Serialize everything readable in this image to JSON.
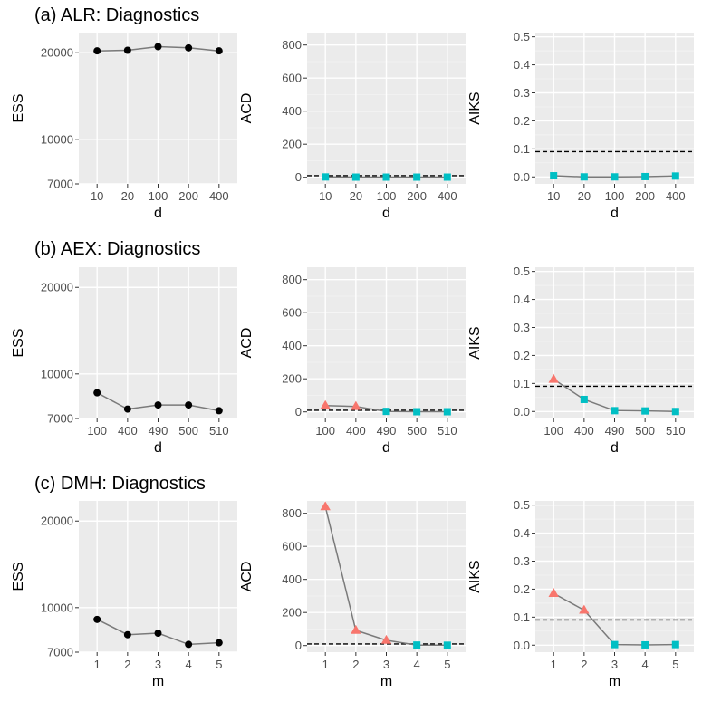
{
  "colors": {
    "ess": "#000000",
    "fail": "#f8766d",
    "pass": "#00bfc4"
  },
  "rows": [
    {
      "title": "(a) ALR: Diagnostics"
    },
    {
      "title": "(b) AEX: Diagnostics"
    },
    {
      "title": "(c) DMH: Diagnostics"
    }
  ],
  "chart_data": [
    {
      "id": "a-ess",
      "type": "line",
      "xlabel": "d",
      "ylabel": "ESS",
      "categories": [
        "10",
        "20",
        "100",
        "200",
        "400"
      ],
      "values": [
        20300,
        20400,
        21000,
        20800,
        20300
      ],
      "yscale": "log",
      "ylim": [
        7000,
        23500
      ],
      "yticks": [
        7000,
        10000,
        20000
      ],
      "ytick_labels": [
        "7000",
        "10000",
        "20000"
      ],
      "marker": "circle"
    },
    {
      "id": "a-acd",
      "type": "line",
      "xlabel": "d",
      "ylabel": "ACD",
      "categories": [
        "10",
        "20",
        "100",
        "200",
        "400"
      ],
      "values": [
        2,
        1,
        1,
        1,
        1
      ],
      "status": [
        "pass",
        "pass",
        "pass",
        "pass",
        "pass"
      ],
      "ylim": [
        -40,
        875
      ],
      "yticks": [
        0,
        200,
        400,
        600,
        800
      ],
      "ytick_labels": [
        "0",
        "200",
        "400",
        "600",
        "800"
      ],
      "ref_line": 9.49
    },
    {
      "id": "a-aiks",
      "type": "line",
      "xlabel": "d",
      "ylabel": "AIKS",
      "categories": [
        "10",
        "20",
        "100",
        "200",
        "400"
      ],
      "values": [
        0.004,
        0.0,
        0.0,
        0.001,
        0.003
      ],
      "status": [
        "pass",
        "pass",
        "pass",
        "pass",
        "pass"
      ],
      "ylim": [
        -0.025,
        0.515
      ],
      "yticks": [
        0,
        0.1,
        0.2,
        0.3,
        0.4,
        0.5
      ],
      "ytick_labels": [
        "0.0",
        "0.1",
        "0.2",
        "0.3",
        "0.4",
        "0.5"
      ],
      "ref_line": 0.09
    },
    {
      "id": "b-ess",
      "type": "line",
      "xlabel": "d",
      "ylabel": "ESS",
      "categories": [
        "100",
        "400",
        "490",
        "500",
        "510"
      ],
      "values": [
        8600,
        7550,
        7800,
        7800,
        7450
      ],
      "yscale": "log",
      "ylim": [
        7000,
        23500
      ],
      "yticks": [
        7000,
        10000,
        20000
      ],
      "ytick_labels": [
        "7000",
        "10000",
        "20000"
      ],
      "marker": "circle"
    },
    {
      "id": "b-acd",
      "type": "line",
      "xlabel": "d",
      "ylabel": "ACD",
      "categories": [
        "100",
        "400",
        "490",
        "500",
        "510"
      ],
      "values": [
        38,
        33,
        3,
        1,
        1
      ],
      "status": [
        "fail",
        "fail",
        "pass",
        "pass",
        "pass"
      ],
      "ylim": [
        -40,
        875
      ],
      "yticks": [
        0,
        200,
        400,
        600,
        800
      ],
      "ytick_labels": [
        "0",
        "200",
        "400",
        "600",
        "800"
      ],
      "ref_line": 9.49
    },
    {
      "id": "b-aiks",
      "type": "line",
      "xlabel": "d",
      "ylabel": "AIKS",
      "categories": [
        "100",
        "400",
        "490",
        "500",
        "510"
      ],
      "values": [
        0.115,
        0.043,
        0.003,
        0.002,
        0.0
      ],
      "status": [
        "fail",
        "pass",
        "pass",
        "pass",
        "pass"
      ],
      "ylim": [
        -0.025,
        0.515
      ],
      "yticks": [
        0,
        0.1,
        0.2,
        0.3,
        0.4,
        0.5
      ],
      "ytick_labels": [
        "0.0",
        "0.1",
        "0.2",
        "0.3",
        "0.4",
        "0.5"
      ],
      "ref_line": 0.09
    },
    {
      "id": "c-ess",
      "type": "line",
      "xlabel": "m",
      "ylabel": "ESS",
      "categories": [
        "1",
        "2",
        "3",
        "4",
        "5"
      ],
      "values": [
        9100,
        8050,
        8150,
        7450,
        7550
      ],
      "yscale": "log",
      "ylim": [
        7000,
        23500
      ],
      "yticks": [
        7000,
        10000,
        20000
      ],
      "ytick_labels": [
        "7000",
        "10000",
        "20000"
      ],
      "marker": "circle"
    },
    {
      "id": "c-acd",
      "type": "line",
      "xlabel": "m",
      "ylabel": "ACD",
      "categories": [
        "1",
        "2",
        "3",
        "4",
        "5"
      ],
      "values": [
        840,
        92,
        32,
        3,
        2
      ],
      "status": [
        "fail",
        "fail",
        "fail",
        "pass",
        "pass"
      ],
      "ylim": [
        -40,
        875
      ],
      "yticks": [
        0,
        200,
        400,
        600,
        800
      ],
      "ytick_labels": [
        "0",
        "200",
        "400",
        "600",
        "800"
      ],
      "ref_line": 9.49
    },
    {
      "id": "c-aiks",
      "type": "line",
      "xlabel": "m",
      "ylabel": "AIKS",
      "categories": [
        "1",
        "2",
        "3",
        "4",
        "5"
      ],
      "values": [
        0.185,
        0.125,
        0.002,
        0.001,
        0.002
      ],
      "status": [
        "fail",
        "fail",
        "pass",
        "pass",
        "pass"
      ],
      "ylim": [
        -0.025,
        0.515
      ],
      "yticks": [
        0,
        0.1,
        0.2,
        0.3,
        0.4,
        0.5
      ],
      "ytick_labels": [
        "0.0",
        "0.1",
        "0.2",
        "0.3",
        "0.4",
        "0.5"
      ],
      "ref_line": 0.09
    }
  ]
}
